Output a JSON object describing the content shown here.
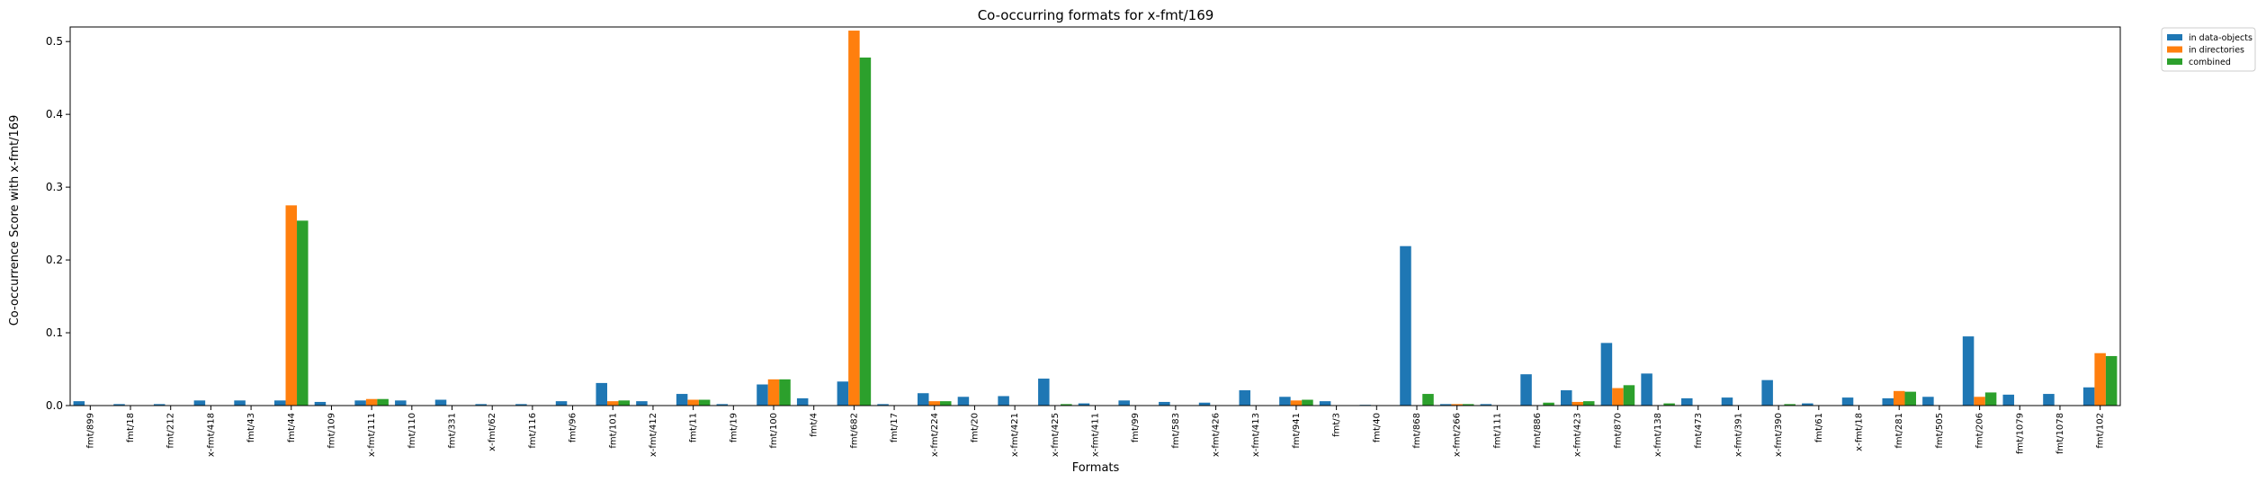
{
  "chart_data": {
    "type": "bar",
    "title": "Co-occurring formats for x-fmt/169",
    "xlabel": "Formats",
    "ylabel": "Co-occurrence Score with x-fmt/169",
    "ylim": [
      0,
      0.52
    ],
    "yticks": [
      0.0,
      0.1,
      0.2,
      0.3,
      0.4,
      0.5
    ],
    "legend_position": "top-right, outside plot",
    "grid": false,
    "categories": [
      "fmt/899",
      "fmt/18",
      "fmt/212",
      "x-fmt/418",
      "fmt/43",
      "fmt/44",
      "fmt/109",
      "x-fmt/111",
      "fmt/110",
      "fmt/331",
      "x-fmt/62",
      "fmt/116",
      "fmt/96",
      "fmt/101",
      "x-fmt/412",
      "fmt/11",
      "fmt/19",
      "fmt/100",
      "fmt/4",
      "fmt/682",
      "fmt/17",
      "x-fmt/224",
      "fmt/20",
      "x-fmt/421",
      "x-fmt/425",
      "x-fmt/411",
      "fmt/99",
      "fmt/583",
      "x-fmt/426",
      "x-fmt/413",
      "fmt/941",
      "fmt/3",
      "fmt/40",
      "fmt/868",
      "x-fmt/266",
      "fmt/111",
      "fmt/886",
      "x-fmt/423",
      "fmt/870",
      "x-fmt/138",
      "fmt/473",
      "x-fmt/391",
      "x-fmt/390",
      "fmt/61",
      "x-fmt/18",
      "fmt/281",
      "fmt/505",
      "fmt/206",
      "fmt/1079",
      "fmt/1078",
      "fmt/102"
    ],
    "series": [
      {
        "name": "in data-objects",
        "color": "#1f77b4",
        "values": [
          0.006,
          0.002,
          0.002,
          0.007,
          0.007,
          0.007,
          0.005,
          0.007,
          0.007,
          0.008,
          0.002,
          0.002,
          0.006,
          0.031,
          0.006,
          0.016,
          0.002,
          0.029,
          0.01,
          0.033,
          0.002,
          0.017,
          0.012,
          0.013,
          0.037,
          0.003,
          0.007,
          0.005,
          0.004,
          0.021,
          0.012,
          0.006,
          0.001,
          0.219,
          0.002,
          0.002,
          0.043,
          0.021,
          0.086,
          0.044,
          0.01,
          0.011,
          0.035,
          0.003,
          0.011,
          0.01,
          0.012,
          0.095,
          0.015,
          0.016,
          0.025
        ]
      },
      {
        "name": "in directories",
        "color": "#ff7f0e",
        "values": [
          0,
          0,
          0,
          0,
          0,
          0.275,
          0,
          0.009,
          0,
          0,
          0,
          0,
          0,
          0.006,
          0,
          0.008,
          0,
          0.036,
          0,
          0.515,
          0,
          0.006,
          0,
          0,
          0,
          0,
          0,
          0,
          0,
          0,
          0.007,
          0,
          0,
          0,
          0.002,
          0,
          0,
          0.005,
          0.024,
          0,
          0,
          0,
          0,
          0,
          0,
          0.02,
          0,
          0.012,
          0,
          0,
          0.072
        ]
      },
      {
        "name": "combined",
        "color": "#2ca02c",
        "values": [
          0,
          0,
          0,
          0,
          0,
          0.254,
          0,
          0.009,
          0,
          0,
          0,
          0,
          0,
          0.007,
          0,
          0.008,
          0,
          0.036,
          0,
          0.478,
          0,
          0.006,
          0,
          0,
          0.002,
          0,
          0,
          0,
          0,
          0,
          0.008,
          0,
          0,
          0.016,
          0.002,
          0,
          0.004,
          0.006,
          0.028,
          0.003,
          0,
          0,
          0.002,
          0,
          0,
          0.019,
          0,
          0.018,
          0,
          0,
          0.068
        ]
      }
    ]
  }
}
